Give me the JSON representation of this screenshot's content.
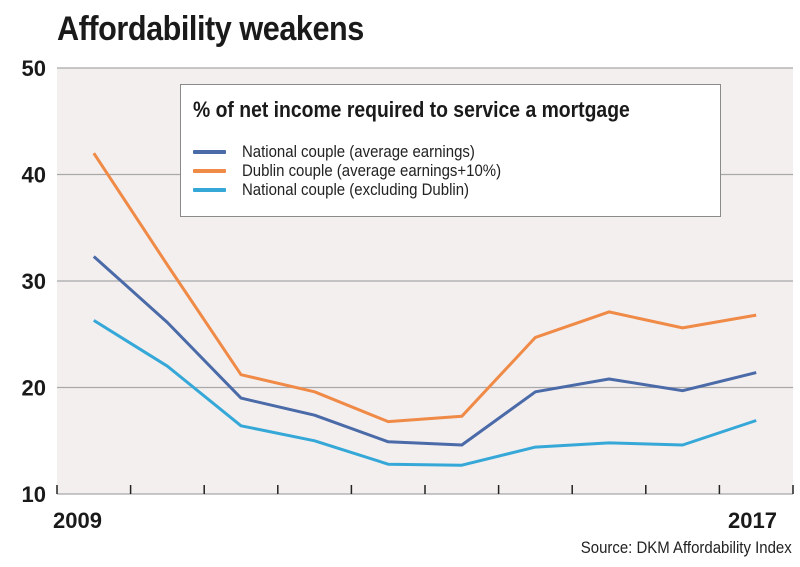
{
  "title": "Affordability weakens",
  "source": "Source: DKM Affordability Index",
  "colors": {
    "background_plot": "#f3efef",
    "gridline": "#a9a9a9",
    "national": "#4a6aa8",
    "dublin": "#ef8a47",
    "national_ex_dublin": "#36a8d8"
  },
  "chart_data": {
    "type": "line",
    "title": "Affordability weakens",
    "subtitle": "% of net income required to service a mortgage",
    "xlabel": "",
    "ylabel": "",
    "x_tick_labels": [
      "2009",
      "2017"
    ],
    "x_start_label": "2009",
    "x_end_label": "2017",
    "n_points": 10,
    "n_tick_intervals": 10,
    "yticks": [
      10,
      20,
      30,
      40,
      50
    ],
    "ylim": [
      10,
      50
    ],
    "grid": "horizontal",
    "legend_position": "top-right",
    "series": [
      {
        "name": "National couple (average earnings)",
        "color_key": "national",
        "values": [
          32.3,
          26.1,
          19.0,
          17.4,
          14.9,
          14.6,
          19.6,
          20.8,
          19.7,
          21.4
        ]
      },
      {
        "name": "Dublin couple (average earnings+10%)",
        "color_key": "dublin",
        "values": [
          42.0,
          31.5,
          21.2,
          19.6,
          16.8,
          17.3,
          24.7,
          27.1,
          25.6,
          26.8
        ]
      },
      {
        "name": "National couple (excluding Dublin)",
        "color_key": "national_ex_dublin",
        "values": [
          26.3,
          22.0,
          16.4,
          15.0,
          12.8,
          12.7,
          14.4,
          14.8,
          14.6,
          16.9
        ]
      }
    ]
  }
}
